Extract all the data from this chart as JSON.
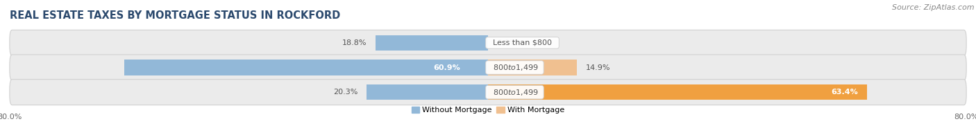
{
  "title": "Real Estate Taxes by Mortgage Status in Rockford",
  "source": "Source: ZipAtlas.com",
  "rows": [
    {
      "label": "Less than $800",
      "without_mortgage": 18.8,
      "with_mortgage": 0.0
    },
    {
      "label": "$800 to $1,499",
      "without_mortgage": 60.9,
      "with_mortgage": 14.9
    },
    {
      "label": "$800 to $1,499",
      "without_mortgage": 20.3,
      "with_mortgage": 63.4
    }
  ],
  "axis_min": -80.0,
  "axis_max": 80.0,
  "axis_left_label": "80.0%",
  "axis_right_label": "80.0%",
  "color_without": "#92b8d8",
  "color_with_light": "#f0c090",
  "color_with_dark": "#f0a040",
  "bar_height": 0.62,
  "row_bg_color": "#ebebeb",
  "row_bg_edge": "#d0d0d0",
  "legend_without": "Without Mortgage",
  "legend_with": "With Mortgage",
  "title_fontsize": 10.5,
  "source_fontsize": 8,
  "label_fontsize": 8,
  "tick_fontsize": 8,
  "center_label_bg": "#f5f5f5",
  "white_text": "#ffffff",
  "dark_text": "#555555",
  "pct_text_color": "#555555"
}
